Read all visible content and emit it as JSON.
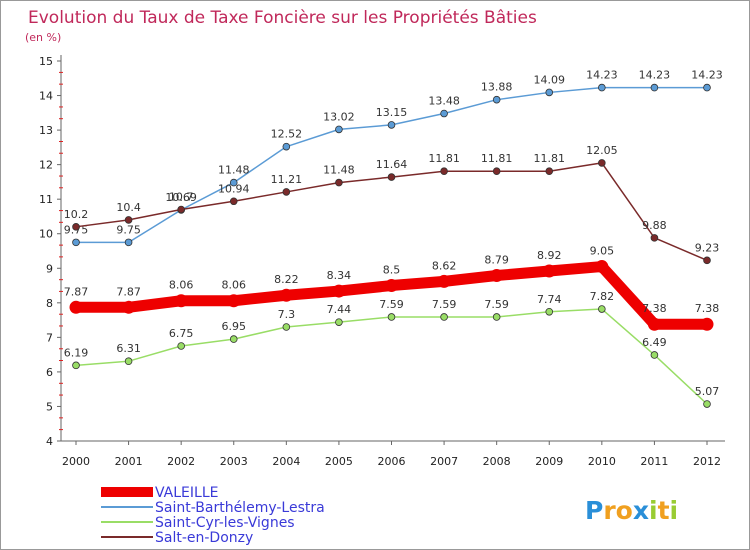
{
  "chart_data": {
    "type": "line",
    "title": "Evolution du Taux de Taxe Foncière sur les Propriétés Bâties",
    "subtitle": "(en %)",
    "x": [
      "2000",
      "2001",
      "2002",
      "2003",
      "2004",
      "2005",
      "2006",
      "2007",
      "2008",
      "2009",
      "2010",
      "2011",
      "2012"
    ],
    "ylim": [
      4,
      15
    ],
    "yticks": [
      4,
      5,
      6,
      7,
      8,
      9,
      10,
      11,
      12,
      13,
      14,
      15
    ],
    "grid": false,
    "legend_position": "bottom-left",
    "series": [
      {
        "name": "VALEILLE",
        "color": "#ee0000",
        "style": "thick",
        "values": [
          7.87,
          7.87,
          8.06,
          8.06,
          8.22,
          8.34,
          8.5,
          8.62,
          8.79,
          8.92,
          9.05,
          7.38,
          7.38
        ],
        "labels": [
          "7.87",
          "7.87",
          "8.06",
          "8.06",
          "8.22",
          "8.34",
          "8.5",
          "8.62",
          "8.79",
          "8.92",
          "9.05",
          "7.38",
          "7.38"
        ]
      },
      {
        "name": "Saint-Barthélemy-Lestra",
        "color": "#5b9bd5",
        "style": "thin",
        "values": [
          9.75,
          9.75,
          10.69,
          11.48,
          12.52,
          13.02,
          13.15,
          13.48,
          13.88,
          14.09,
          14.23,
          14.23,
          14.23
        ],
        "labels": [
          "9.75",
          "9.75",
          "10.69",
          "11.48",
          "12.52",
          "13.02",
          "13.15",
          "13.48",
          "13.88",
          "14.09",
          "14.23",
          "14.23",
          "14.23"
        ]
      },
      {
        "name": "Saint-Cyr-les-Vignes",
        "color": "#99dd66",
        "style": "thin",
        "values": [
          6.19,
          6.31,
          6.75,
          6.95,
          7.3,
          7.44,
          7.59,
          7.59,
          7.59,
          7.74,
          7.82,
          6.49,
          5.07
        ],
        "labels": [
          "6.19",
          "6.31",
          "6.75",
          "6.95",
          "7.3",
          "7.44",
          "7.59",
          "7.59",
          "7.59",
          "7.74",
          "7.82",
          "6.49",
          "5.07"
        ]
      },
      {
        "name": "Salt-en-Donzy",
        "color": "#7a2a2a",
        "style": "thin",
        "values": [
          10.2,
          10.4,
          10.7,
          10.94,
          11.21,
          11.48,
          11.64,
          11.81,
          11.81,
          11.81,
          12.05,
          9.88,
          9.23
        ],
        "labels": [
          "10.2",
          "10.4",
          "10.7",
          "10.94",
          "11.21",
          "11.48",
          "11.64",
          "11.81",
          "11.81",
          "11.81",
          "12.05",
          "9.88",
          "9.23"
        ]
      }
    ]
  },
  "logo": {
    "text": "Proxiti",
    "letters": [
      "P",
      "r",
      "o",
      "x",
      "i",
      "t",
      "i"
    ],
    "colors": [
      "#2a8fd8",
      "#f0a020",
      "#f0a020",
      "#2a8fd8",
      "#99cc33",
      "#f0a020",
      "#99cc33"
    ]
  }
}
